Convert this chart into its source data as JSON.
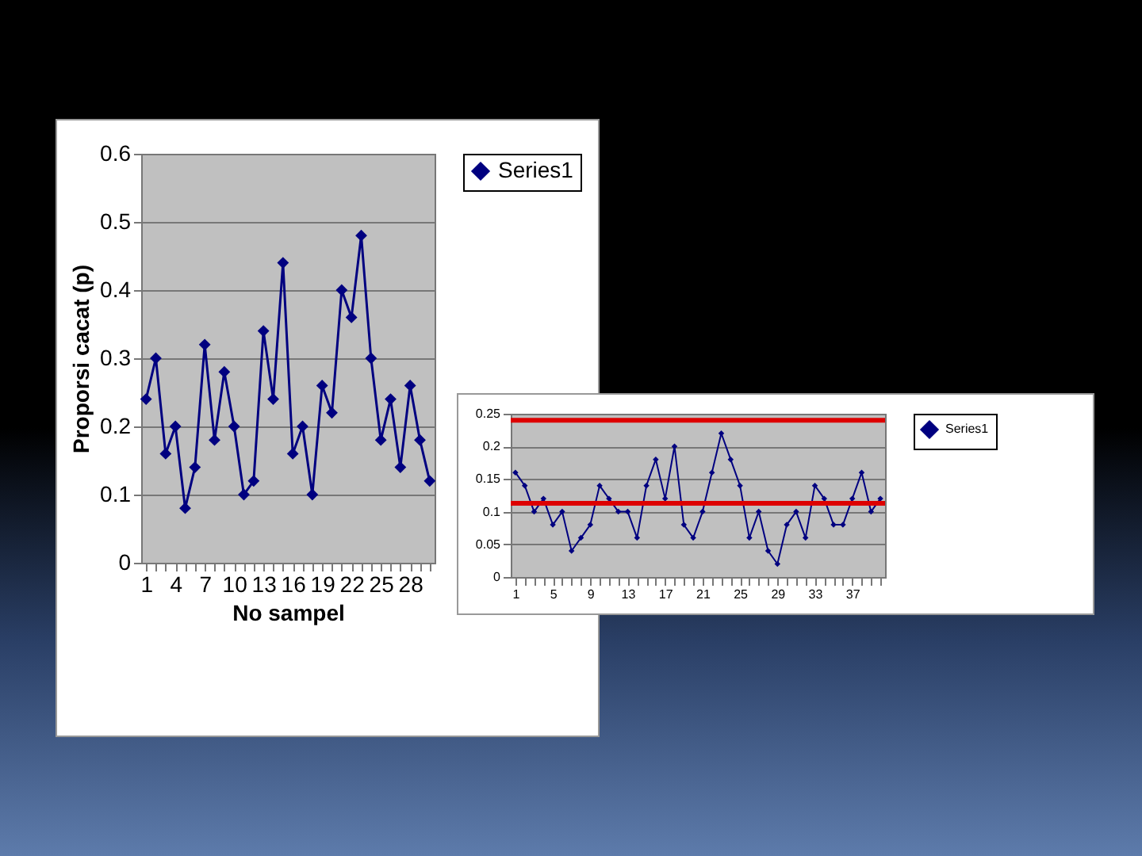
{
  "chart_data": [
    {
      "type": "line",
      "categories": [
        "1",
        null,
        null,
        "4",
        null,
        null,
        "7",
        null,
        null,
        "10",
        null,
        null,
        "13",
        null,
        null,
        "16",
        null,
        null,
        "19",
        null,
        null,
        "22",
        null,
        null,
        "25",
        null,
        null,
        "28",
        null,
        null
      ],
      "series": [
        {
          "name": "Series1",
          "color": "#000080",
          "values": [
            0.24,
            0.3,
            0.16,
            0.2,
            0.08,
            0.14,
            0.32,
            0.18,
            0.28,
            0.2,
            0.1,
            0.12,
            0.34,
            0.24,
            0.44,
            0.16,
            0.2,
            0.1,
            0.26,
            0.22,
            0.4,
            0.36,
            0.48,
            0.3,
            0.18,
            0.24,
            0.14,
            0.26,
            0.18,
            0.12
          ]
        }
      ],
      "xlabel": "No sampel",
      "ylabel": "Proporsi cacat (p)",
      "ylim": [
        0,
        0.6
      ],
      "yticks": [
        0,
        0.1,
        0.2,
        0.3,
        0.4,
        0.5,
        0.6
      ],
      "grid": "y",
      "legend": "right",
      "marker": "diamond"
    },
    {
      "type": "line",
      "categories": [
        "1",
        null,
        null,
        null,
        "5",
        null,
        null,
        null,
        "9",
        null,
        null,
        null,
        "13",
        null,
        null,
        null,
        "17",
        null,
        null,
        null,
        "21",
        null,
        null,
        null,
        "25",
        null,
        null,
        null,
        "29",
        null,
        null,
        null,
        "33",
        null,
        null,
        null,
        "37",
        null,
        null,
        null
      ],
      "series": [
        {
          "name": "Series1",
          "color": "#000080",
          "values": [
            0.16,
            0.14,
            0.1,
            0.12,
            0.08,
            0.1,
            0.04,
            0.06,
            0.08,
            0.14,
            0.12,
            0.1,
            0.1,
            0.06,
            0.14,
            0.18,
            0.12,
            0.2,
            0.08,
            0.06,
            0.1,
            0.16,
            0.22,
            0.18,
            0.14,
            0.06,
            0.1,
            0.04,
            0.02,
            0.08,
            0.1,
            0.06,
            0.14,
            0.12,
            0.08,
            0.08,
            0.12,
            0.16,
            0.1,
            0.12
          ]
        }
      ],
      "ylim": [
        0,
        0.25
      ],
      "yticks": [
        0,
        0.05,
        0.1,
        0.15,
        0.2,
        0.25
      ],
      "grid": "y",
      "legend": "right",
      "marker": "diamond",
      "ref_lines": [
        {
          "axis": "y",
          "value": 0.24,
          "color": "#dd0000"
        },
        {
          "axis": "y",
          "value": 0.113,
          "color": "#dd0000"
        }
      ]
    }
  ]
}
